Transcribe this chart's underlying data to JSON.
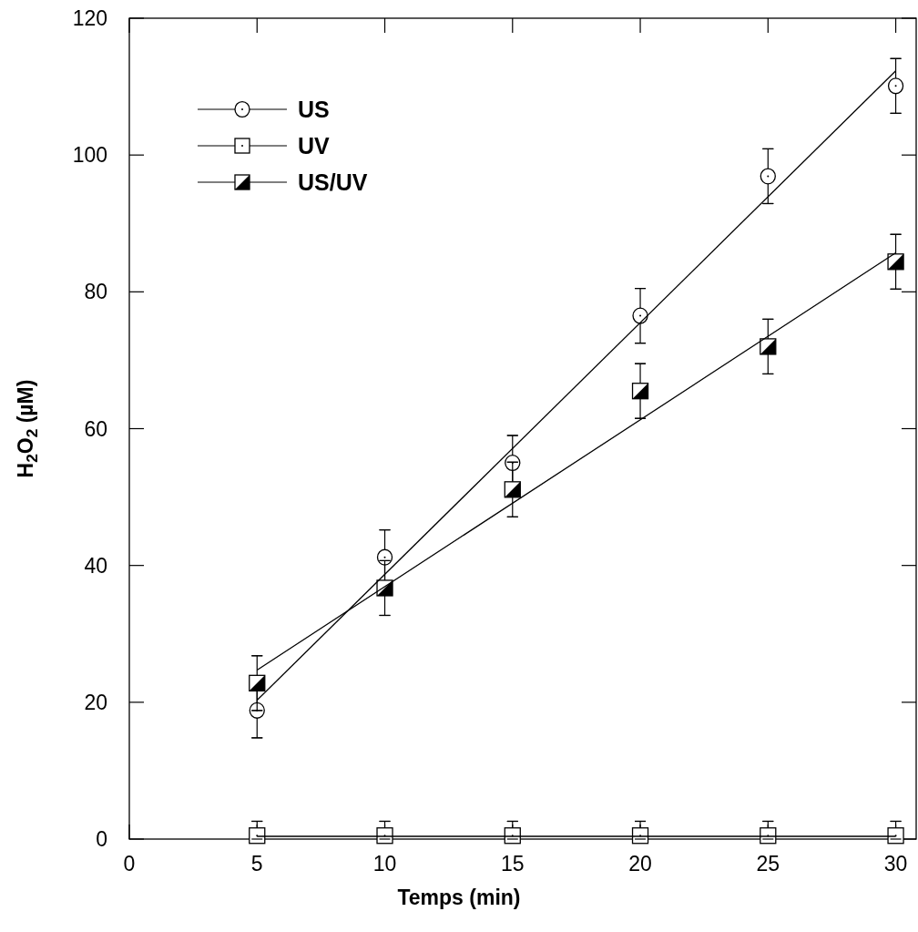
{
  "chart_data": {
    "type": "scatter",
    "xlabel": "Temps (min)",
    "ylabel": "H$_{2}$O$_{2}$ (µM)",
    "xlim": [
      0,
      30.8
    ],
    "ylim": [
      0,
      120
    ],
    "xticks": [
      0,
      5,
      10,
      15,
      20,
      25,
      30
    ],
    "yticks": [
      0,
      20,
      40,
      60,
      80,
      100,
      120
    ],
    "grid": false,
    "legend": "top left",
    "series": [
      {
        "name": "US",
        "color": "#000000",
        "marker": "circle",
        "x": [
          5,
          10,
          15,
          20,
          25,
          30
        ],
        "values": [
          18.8,
          41.2,
          55.0,
          76.5,
          96.9,
          110.1
        ],
        "errors": [
          4,
          4,
          4,
          4,
          4,
          4
        ]
      },
      {
        "name": "UV",
        "color": "#000000",
        "marker": "square",
        "x": [
          5,
          10,
          15,
          20,
          25,
          30
        ],
        "values": [
          0.5,
          0.5,
          0.5,
          0.5,
          0.5,
          0.5
        ],
        "errors": [
          [
            0,
            2.6
          ],
          [
            0,
            2.6
          ],
          [
            0,
            2.6
          ],
          [
            0,
            2.6
          ],
          [
            0,
            2.6
          ],
          [
            0,
            2.6
          ]
        ]
      },
      {
        "name": "US/UV",
        "color": "#000000",
        "marker": "square",
        "x": [
          5,
          10,
          15,
          20,
          25,
          30
        ],
        "values": [
          22.8,
          36.7,
          51.1,
          65.5,
          72.0,
          84.4
        ],
        "errors": [
          4,
          4,
          4,
          4,
          4,
          4
        ]
      },
      {
        "type": "line",
        "color": "#000000",
        "marker": "none",
        "x": [
          5,
          30
        ],
        "values": [
          20.3,
          112.3
        ]
      },
      {
        "type": "line",
        "color": "#000000",
        "marker": "none",
        "x": [
          5,
          30
        ],
        "values": [
          0.4,
          0.4
        ]
      },
      {
        "type": "line",
        "color": "#000000",
        "marker": "none",
        "x": [
          5,
          30
        ],
        "values": [
          24.7,
          85.7
        ]
      }
    ]
  }
}
